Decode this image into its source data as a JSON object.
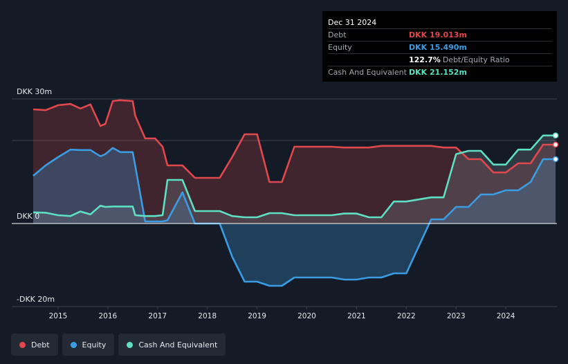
{
  "tooltip": {
    "date": "Dec 31 2024",
    "debt_label": "Debt",
    "debt_value": "DKK 19.013m",
    "equity_label": "Equity",
    "equity_value": "DKK 15.490m",
    "ratio_value": "122.7%",
    "ratio_label": "Debt/Equity Ratio",
    "cash_label": "Cash And Equivalent",
    "cash_value": "DKK 21.152m"
  },
  "legend": [
    {
      "label": "Debt",
      "color": "#e0484e"
    },
    {
      "label": "Equity",
      "color": "#3a9de3"
    },
    {
      "label": "Cash And Equivalent",
      "color": "#5ee0c4"
    }
  ],
  "chart_data": {
    "type": "area",
    "title": "",
    "y_tick_labels": [
      "DKK 30m",
      "DKK 0",
      "-DKK 20m"
    ],
    "ylim": [
      -20,
      30
    ],
    "xlim": [
      2014.5,
      2025.0
    ],
    "x_ticks": [
      2015,
      2016,
      2017,
      2018,
      2019,
      2020,
      2021,
      2022,
      2023,
      2024
    ],
    "x_tick_labels": [
      "2015",
      "2016",
      "2017",
      "2018",
      "2019",
      "2020",
      "2021",
      "2022",
      "2023",
      "2024"
    ],
    "colors": {
      "debt": "#e0484e",
      "equity": "#3a9de3",
      "cash": "#5ee0c4"
    },
    "series": [
      {
        "name": "Debt",
        "x": [
          2014.5,
          2014.75,
          2015.0,
          2015.25,
          2015.45,
          2015.65,
          2015.85,
          2015.95,
          2016.1,
          2016.25,
          2016.5,
          2016.55,
          2016.75,
          2016.95,
          2017.1,
          2017.2,
          2017.5,
          2017.75,
          2018.0,
          2018.25,
          2018.5,
          2018.75,
          2019.0,
          2019.25,
          2019.5,
          2019.75,
          2020.0,
          2020.5,
          2020.75,
          2021.0,
          2021.25,
          2021.5,
          2021.75,
          2022.0,
          2022.5,
          2022.75,
          2023.0,
          2023.25,
          2023.5,
          2023.75,
          2024.0,
          2024.25,
          2024.5,
          2024.75,
          2025.0
        ],
        "y": [
          27.5,
          27.3,
          28.5,
          28.8,
          27.7,
          28.7,
          23.5,
          24.0,
          29.5,
          29.7,
          29.5,
          26.0,
          20.5,
          20.5,
          18.5,
          14.0,
          14.0,
          11.0,
          11.0,
          11.0,
          16.0,
          21.5,
          21.5,
          10.0,
          10.0,
          18.5,
          18.5,
          18.5,
          18.3,
          18.3,
          18.3,
          18.7,
          18.7,
          18.7,
          18.7,
          18.3,
          18.3,
          15.5,
          15.5,
          12.3,
          12.3,
          14.5,
          14.5,
          19.0,
          19.0
        ]
      },
      {
        "name": "Equity",
        "x": [
          2014.5,
          2014.75,
          2015.0,
          2015.25,
          2015.45,
          2015.65,
          2015.85,
          2015.95,
          2016.1,
          2016.25,
          2016.5,
          2016.55,
          2016.75,
          2016.95,
          2017.1,
          2017.2,
          2017.5,
          2017.75,
          2018.0,
          2018.25,
          2018.5,
          2018.75,
          2019.0,
          2019.25,
          2019.5,
          2019.75,
          2020.0,
          2020.5,
          2020.75,
          2021.0,
          2021.25,
          2021.5,
          2021.75,
          2022.0,
          2022.5,
          2022.75,
          2023.0,
          2023.25,
          2023.5,
          2023.75,
          2024.0,
          2024.25,
          2024.5,
          2024.75,
          2025.0
        ],
        "y": [
          11.5,
          14.0,
          16.0,
          17.8,
          17.7,
          17.7,
          16.2,
          16.7,
          18.2,
          17.2,
          17.2,
          14.0,
          0.5,
          0.5,
          0.5,
          0.8,
          7.5,
          0.0,
          0.0,
          0.0,
          -8.0,
          -14.0,
          -14.0,
          -15.0,
          -15.0,
          -13.0,
          -13.0,
          -13.0,
          -13.5,
          -13.5,
          -13.0,
          -13.0,
          -12.0,
          -12.0,
          1.0,
          1.0,
          4.0,
          4.0,
          7.0,
          7.0,
          8.0,
          8.0,
          10.0,
          15.5,
          15.5
        ]
      },
      {
        "name": "Cash And Equivalent",
        "x": [
          2014.5,
          2014.75,
          2015.0,
          2015.25,
          2015.45,
          2015.65,
          2015.85,
          2015.95,
          2016.1,
          2016.25,
          2016.5,
          2016.55,
          2016.75,
          2016.95,
          2017.1,
          2017.2,
          2017.5,
          2017.75,
          2018.0,
          2018.25,
          2018.5,
          2018.75,
          2019.0,
          2019.25,
          2019.5,
          2019.75,
          2020.0,
          2020.5,
          2020.75,
          2021.0,
          2021.25,
          2021.5,
          2021.75,
          2022.0,
          2022.5,
          2022.75,
          2023.0,
          2023.25,
          2023.5,
          2023.75,
          2024.0,
          2024.25,
          2024.5,
          2024.75,
          2025.0
        ],
        "y": [
          2.7,
          2.6,
          2.0,
          1.8,
          2.9,
          2.2,
          4.3,
          4.0,
          4.1,
          4.1,
          4.1,
          2.0,
          1.8,
          1.8,
          2.0,
          10.5,
          10.5,
          3.0,
          3.0,
          3.0,
          1.8,
          1.5,
          1.5,
          2.5,
          2.5,
          2.0,
          2.0,
          2.0,
          2.4,
          2.4,
          1.5,
          1.5,
          5.3,
          5.3,
          6.3,
          6.3,
          16.7,
          17.5,
          17.5,
          14.2,
          14.2,
          17.8,
          17.8,
          21.2,
          21.2
        ]
      }
    ]
  }
}
